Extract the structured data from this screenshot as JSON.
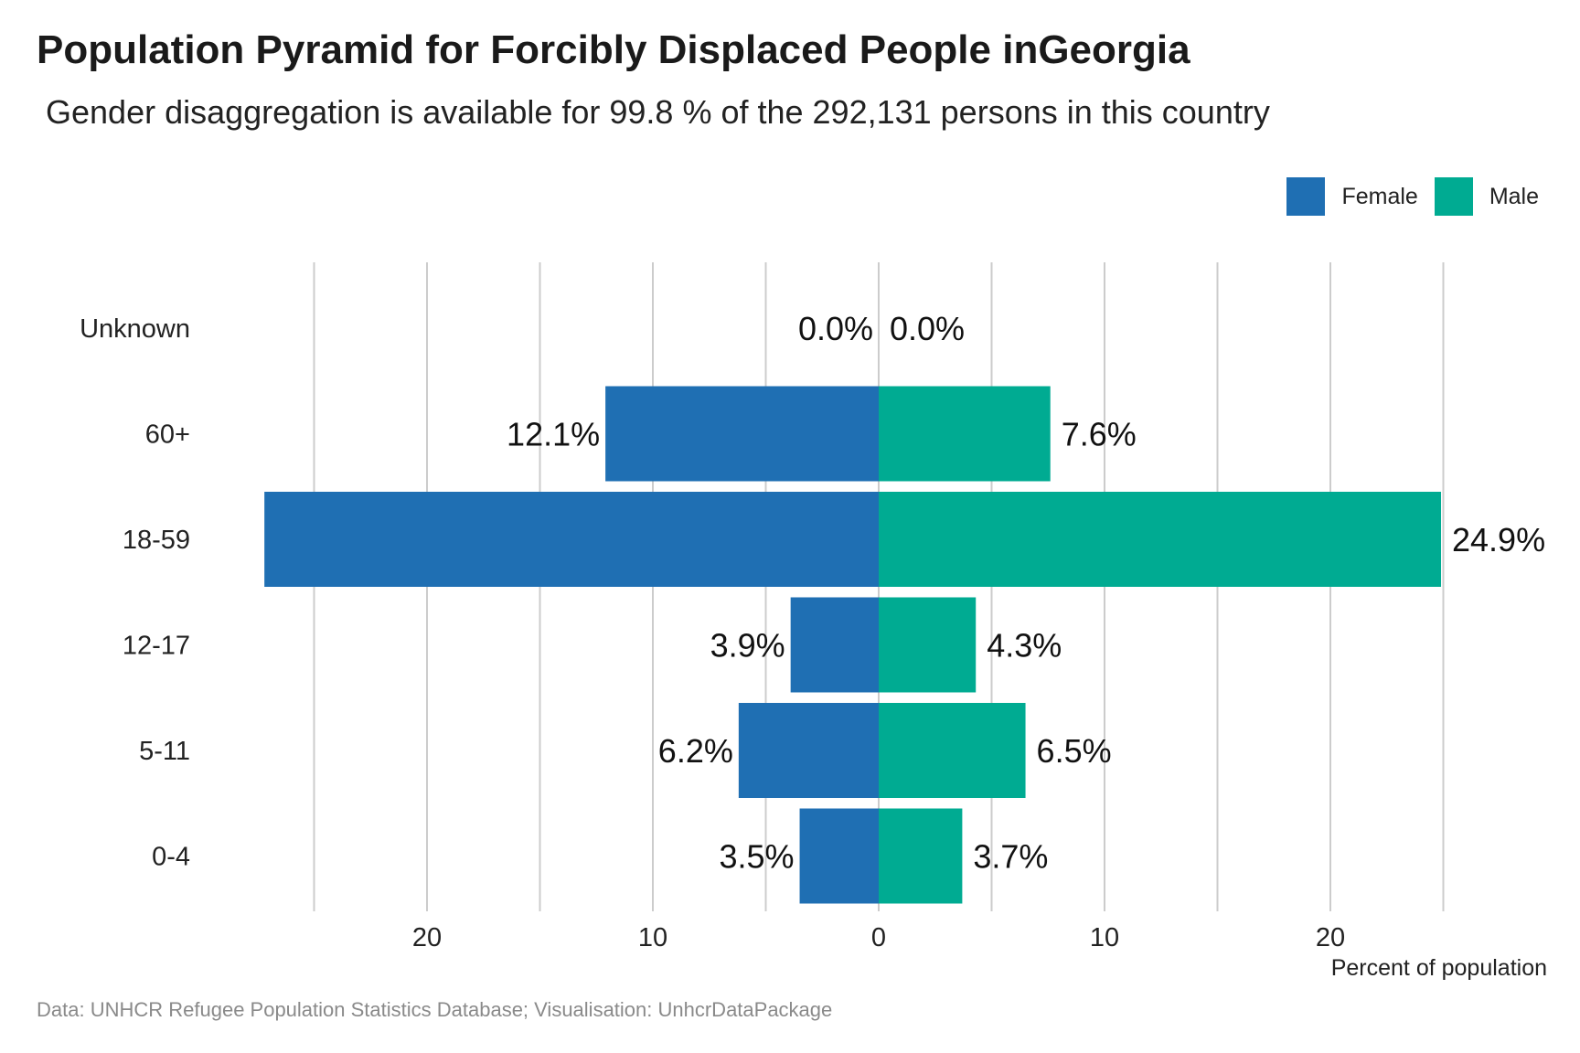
{
  "header": {
    "title": "Population Pyramid for Forcibly Displaced People inGeorgia",
    "subtitle": "Gender disaggregation is available for 99.8 % of the 292,131 persons in this country"
  },
  "legend": {
    "female_label": "Female",
    "male_label": "Male",
    "female_color": "#1f6fb3",
    "male_color": "#00ab92"
  },
  "caption": "Data: UNHCR Refugee Population Statistics Database; Visualisation: UnhcrDataPackage",
  "chart_data": {
    "type": "bar",
    "orientation": "horizontal-diverging",
    "categories": [
      "Unknown",
      "60+",
      "18-59",
      "12-17",
      "5-11",
      "0-4"
    ],
    "series": [
      {
        "name": "Female",
        "values": [
          0.0,
          12.1,
          27.2,
          3.9,
          6.2,
          3.5
        ],
        "labels": [
          "0.0%",
          "12.1%",
          "",
          "3.9%",
          "6.2%",
          "3.5%"
        ]
      },
      {
        "name": "Male",
        "values": [
          0.0,
          7.6,
          24.9,
          4.3,
          6.5,
          3.7
        ],
        "labels": [
          "0.0%",
          "7.6%",
          "24.9%",
          "4.3%",
          "6.5%",
          "3.7%"
        ]
      }
    ],
    "xticks": [
      {
        "value": -20,
        "label": "20"
      },
      {
        "value": -10,
        "label": "10"
      },
      {
        "value": 0,
        "label": "0"
      },
      {
        "value": 10,
        "label": "10"
      },
      {
        "value": 20,
        "label": "20"
      }
    ],
    "xgrid_values": [
      -25,
      -20,
      -15,
      -10,
      -5,
      0,
      5,
      10,
      15,
      20,
      25
    ],
    "xlim": [
      -28,
      28
    ],
    "xlabel": "Percent of population",
    "grid": "vertical",
    "legend_position": "top-right"
  }
}
